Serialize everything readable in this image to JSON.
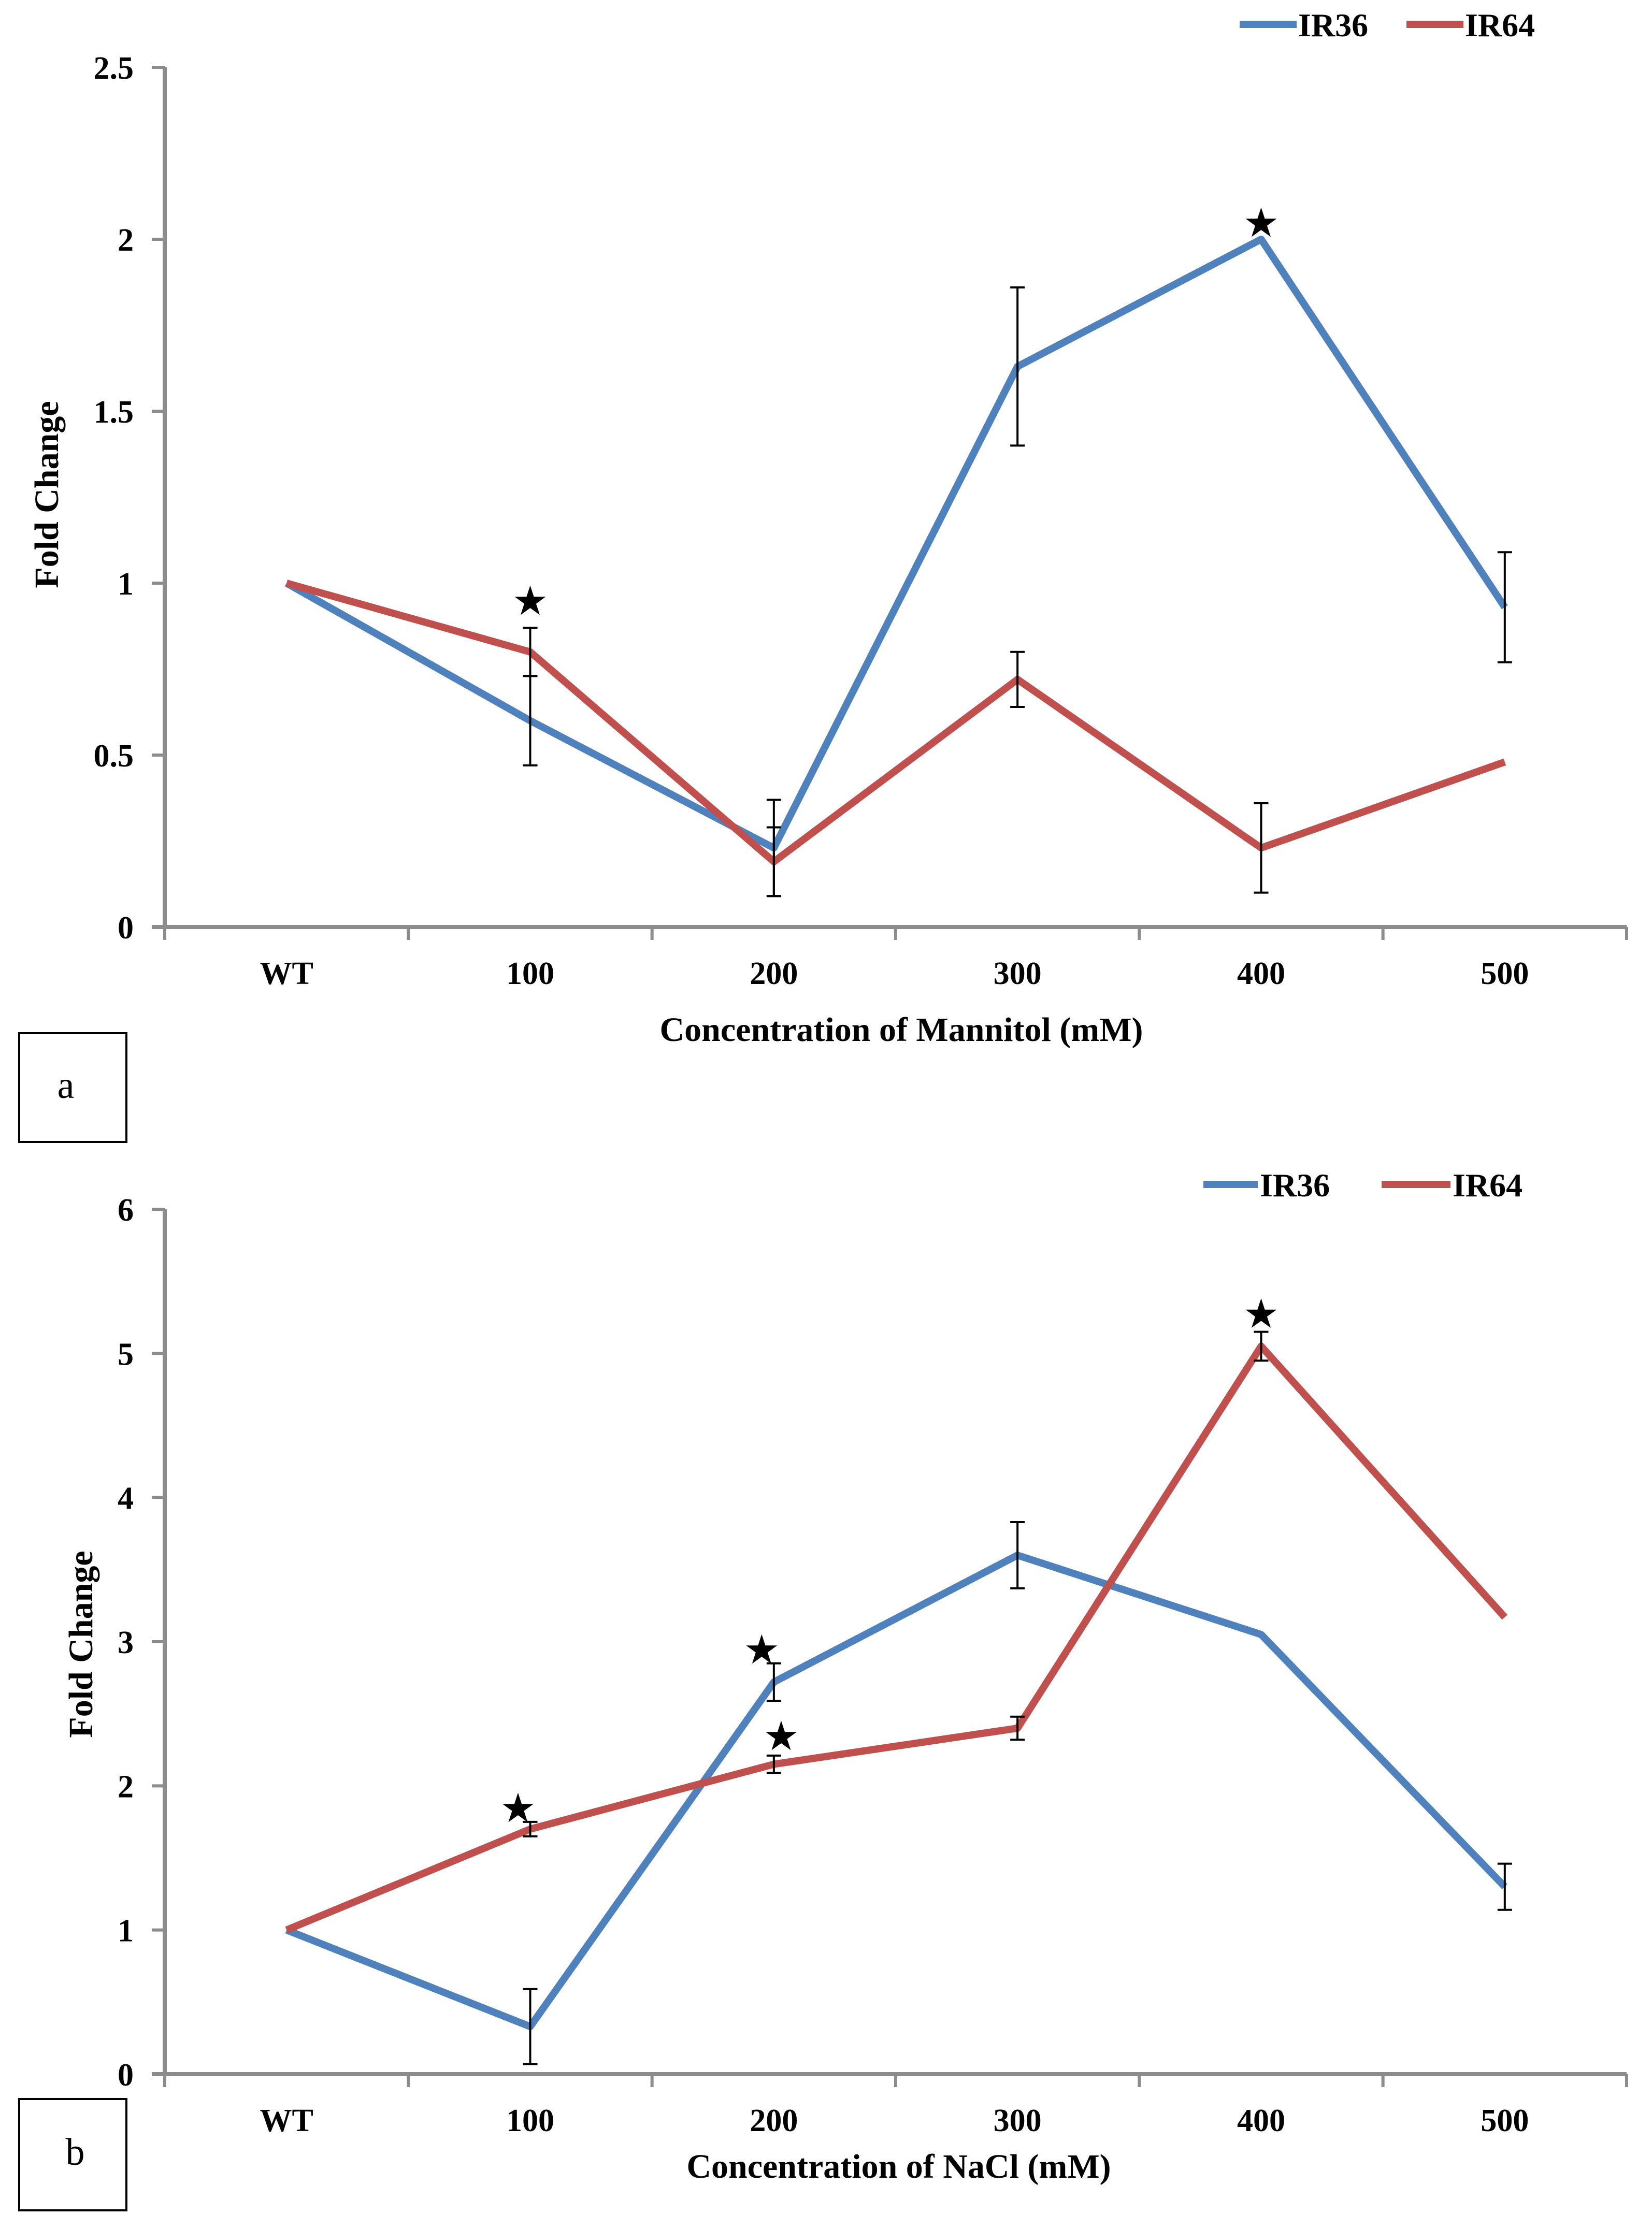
{
  "colors": {
    "IR36": "#4f81bd",
    "IR64": "#c0504d",
    "axis": "#8c8c8c"
  },
  "marker_glyph": "★",
  "chart_data": [
    {
      "type": "line",
      "panel_label": "a",
      "xlabel": "Concentration  of Mannitol  (mM)",
      "ylabel": "Fold Change",
      "categories": [
        "WT",
        "100",
        "200",
        "300",
        "400",
        "500"
      ],
      "ylim": [
        0,
        2.5
      ],
      "yticks": [
        "0",
        "0.5",
        "1",
        "1.5",
        "2",
        "2.5"
      ],
      "legend_position": "top-right",
      "grid": false,
      "series": [
        {
          "name": "IR36",
          "color": "#4f81bd",
          "values": [
            1,
            0.6,
            0.23,
            1.63,
            2.0,
            0.93
          ],
          "error": [
            null,
            0.13,
            0.14,
            0.23,
            null,
            0.16
          ]
        },
        {
          "name": "IR64",
          "color": "#c0504d",
          "values": [
            1,
            0.8,
            0.19,
            0.72,
            0.23,
            0.48
          ],
          "error": [
            null,
            0.07,
            0.1,
            0.08,
            0.13,
            null
          ]
        }
      ],
      "markers": [
        {
          "category": "100",
          "y": 0.95
        },
        {
          "category": "400",
          "y": 2.05
        }
      ]
    },
    {
      "type": "line",
      "panel_label": "b",
      "xlabel": "Concentration  of NaCl (mM)",
      "ylabel": "Fold Change",
      "categories": [
        "WT",
        "100",
        "200",
        "300",
        "400",
        "500"
      ],
      "ylim": [
        0,
        6
      ],
      "yticks": [
        "0",
        "1",
        "2",
        "3",
        "4",
        "5",
        "6"
      ],
      "legend_position": "top-right",
      "grid": false,
      "series": [
        {
          "name": "IR36",
          "color": "#4f81bd",
          "values": [
            1,
            0.33,
            2.72,
            3.6,
            3.05,
            1.3
          ],
          "error": [
            null,
            0.26,
            0.13,
            0.23,
            null,
            0.16
          ]
        },
        {
          "name": "IR64",
          "color": "#c0504d",
          "values": [
            1,
            1.7,
            2.15,
            2.4,
            5.05,
            3.17
          ],
          "error": [
            null,
            0.05,
            0.06,
            0.08,
            0.1,
            null
          ]
        }
      ],
      "markers": [
        {
          "category": "100",
          "y": 1.85,
          "dx": -0.05
        },
        {
          "category": "200",
          "y": 2.95,
          "dx": -0.05
        },
        {
          "category": "200",
          "y": 2.35,
          "dx": 0.03
        },
        {
          "category": "400",
          "y": 5.28
        }
      ]
    }
  ]
}
